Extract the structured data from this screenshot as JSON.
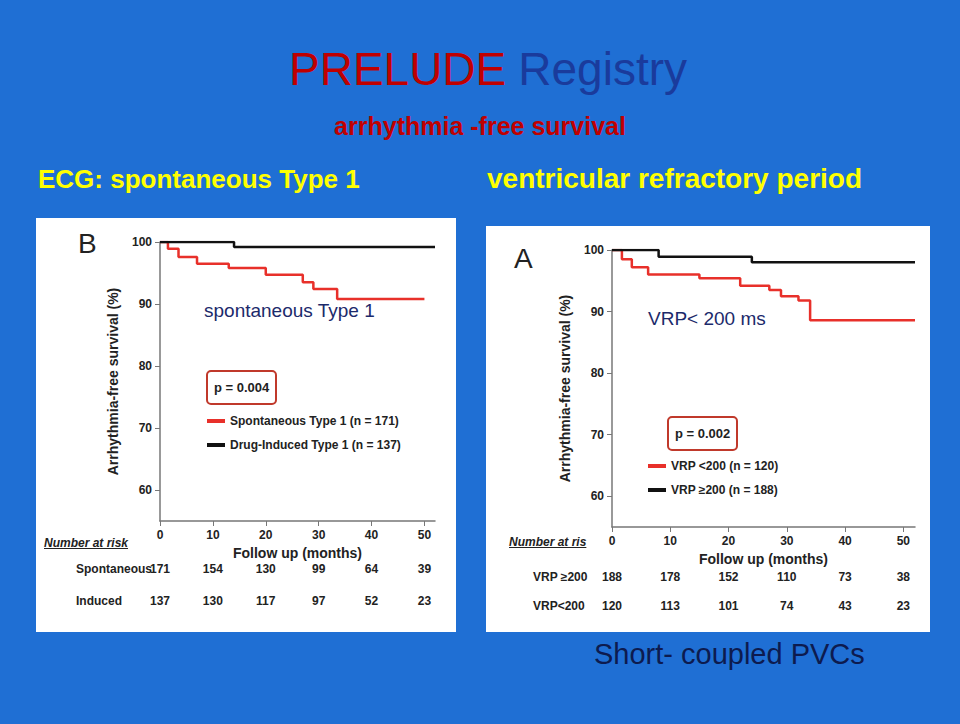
{
  "slide": {
    "title": [
      {
        "text": "PRELUDE",
        "color": "#c00000"
      },
      {
        "text": "Registry",
        "color": "#1a3b9c"
      }
    ],
    "subtitle": "arrhythmia -free survival",
    "headings": [
      "ECG: spontaneous Type 1",
      "ventricular refractory period"
    ],
    "footer": "Short- coupled PVCs"
  },
  "chart_data": [
    {
      "type": "line",
      "panel": "B",
      "title": "spontaneous Type 1",
      "annotation": "p = 0.004",
      "xlabel": "Follow up (months)",
      "ylabel": "Arrhythmia-free survival (%)",
      "xlim": [
        0,
        52
      ],
      "ylim": [
        55,
        100
      ],
      "xticks": [
        0,
        10,
        20,
        30,
        40,
        50
      ],
      "yticks": [
        60,
        70,
        80,
        90,
        100
      ],
      "grid": false,
      "legend": "lower left",
      "line_style": "step",
      "series": [
        {
          "name": "Spontaneous Type 1 (n = 171)",
          "color": "#e8302a",
          "x": [
            0,
            1.5,
            3.5,
            7,
            13,
            20,
            27,
            29,
            33.5,
            50
          ],
          "values": [
            100,
            98.9,
            97.6,
            96.5,
            95.8,
            94.7,
            93.5,
            92.4,
            90.8,
            90.8
          ]
        },
        {
          "name": "Drug-Induced Type 1 (n = 137)",
          "color": "#111111",
          "x": [
            0,
            14,
            52
          ],
          "values": [
            100,
            99.2,
            99.2
          ]
        }
      ],
      "number_at_risk": {
        "title": "Number at risk",
        "x": [
          0,
          10,
          20,
          30,
          40,
          50
        ],
        "rows": [
          {
            "label": "Spontaneous",
            "values": [
              171,
              154,
              130,
              99,
              64,
              39
            ]
          },
          {
            "label": "Induced",
            "values": [
              137,
              130,
              117,
              97,
              52,
              23
            ]
          }
        ]
      }
    },
    {
      "type": "line",
      "panel": "A",
      "title": "VRP< 200 ms",
      "annotation": "p = 0.002",
      "xlabel": "Follow up (months)",
      "ylabel": "Arrhythmia-free survival (%)",
      "xlim": [
        0,
        52
      ],
      "ylim": [
        55,
        100
      ],
      "xticks": [
        0,
        10,
        20,
        30,
        40,
        50
      ],
      "yticks": [
        60,
        70,
        80,
        90,
        100
      ],
      "grid": false,
      "legend": "lower left",
      "line_style": "step",
      "series": [
        {
          "name": "VRP <200 (n = 120)",
          "color": "#e8302a",
          "x": [
            0,
            1.7,
            3.4,
            6.2,
            15,
            22,
            27,
            29,
            32,
            34,
            52
          ],
          "values": [
            100,
            98.5,
            97.2,
            96,
            95.4,
            94.2,
            93.5,
            92.5,
            91.8,
            88.6,
            88.6
          ]
        },
        {
          "name": "VRP ≥200 (n = 188)",
          "color": "#111111",
          "x": [
            0,
            8,
            24,
            52
          ],
          "values": [
            100,
            98.9,
            98,
            98
          ]
        }
      ],
      "number_at_risk": {
        "title": "Number at ris",
        "x": [
          0,
          10,
          20,
          30,
          40,
          50
        ],
        "rows": [
          {
            "label": "VRP ≥200",
            "values": [
              188,
              178,
              152,
              110,
              73,
              38
            ]
          },
          {
            "label": "VRP<200",
            "values": [
              120,
              113,
              101,
              74,
              43,
              23
            ]
          }
        ]
      }
    }
  ]
}
